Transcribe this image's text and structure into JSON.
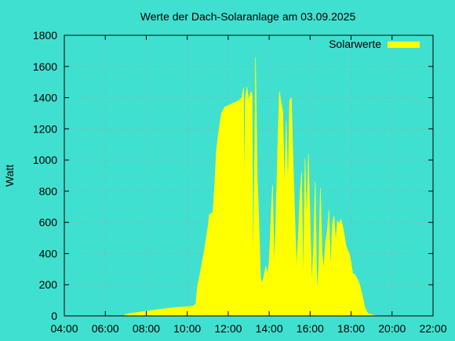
{
  "chart_data": {
    "type": "area",
    "title": "Werte der Dach-Solaranlage am 03.09.2025",
    "xlabel": "",
    "ylabel": "Watt",
    "x_ticks": [
      "04:00",
      "06:00",
      "08:00",
      "10:00",
      "12:00",
      "14:00",
      "16:00",
      "18:00",
      "20:00",
      "22:00"
    ],
    "y_ticks": [
      "0",
      "200",
      "400",
      "600",
      "800",
      "1000",
      "1200",
      "1400",
      "1600",
      "1800"
    ],
    "xlim": [
      "04:00",
      "22:00"
    ],
    "ylim": [
      0,
      1800
    ],
    "grid": true,
    "legend_position": "top-right",
    "colors": {
      "background": "#40e0d0",
      "series": "#ffff00",
      "grid": "#a0a0a0",
      "axis": "#000000"
    },
    "series": [
      {
        "name": "Solarwerte",
        "points": [
          [
            "06:55",
            0
          ],
          [
            "07:00",
            12
          ],
          [
            "07:30",
            22
          ],
          [
            "08:00",
            30
          ],
          [
            "08:30",
            40
          ],
          [
            "09:00",
            48
          ],
          [
            "09:30",
            55
          ],
          [
            "10:00",
            60
          ],
          [
            "10:15",
            62
          ],
          [
            "10:25",
            75
          ],
          [
            "10:30",
            190
          ],
          [
            "10:40",
            300
          ],
          [
            "10:50",
            420
          ],
          [
            "11:00",
            560
          ],
          [
            "11:05",
            650
          ],
          [
            "11:15",
            665
          ],
          [
            "11:20",
            820
          ],
          [
            "11:25",
            1050
          ],
          [
            "11:30",
            1150
          ],
          [
            "11:40",
            1300
          ],
          [
            "11:50",
            1340
          ],
          [
            "12:00",
            1350
          ],
          [
            "12:10",
            1360
          ],
          [
            "12:20",
            1370
          ],
          [
            "12:30",
            1380
          ],
          [
            "12:40",
            1400
          ],
          [
            "12:45",
            1465
          ],
          [
            "12:47",
            700
          ],
          [
            "12:50",
            1390
          ],
          [
            "12:55",
            1470
          ],
          [
            "13:00",
            1380
          ],
          [
            "13:03",
            1410
          ],
          [
            "13:06",
            1440
          ],
          [
            "13:10",
            1420
          ],
          [
            "13:13",
            260
          ],
          [
            "13:18",
            1150
          ],
          [
            "13:20",
            1660
          ],
          [
            "13:25",
            900
          ],
          [
            "13:30",
            600
          ],
          [
            "13:35",
            240
          ],
          [
            "13:40",
            210
          ],
          [
            "13:45",
            260
          ],
          [
            "13:50",
            320
          ],
          [
            "13:55",
            270
          ],
          [
            "14:00",
            350
          ],
          [
            "14:05",
            620
          ],
          [
            "14:10",
            840
          ],
          [
            "14:15",
            300
          ],
          [
            "14:20",
            650
          ],
          [
            "14:25",
            1080
          ],
          [
            "14:30",
            1440
          ],
          [
            "14:35",
            1370
          ],
          [
            "14:40",
            1310
          ],
          [
            "14:45",
            800
          ],
          [
            "14:50",
            1250
          ],
          [
            "14:55",
            820
          ],
          [
            "15:00",
            1380
          ],
          [
            "15:05",
            1400
          ],
          [
            "15:10",
            1000
          ],
          [
            "15:15",
            650
          ],
          [
            "15:20",
            300
          ],
          [
            "15:25",
            500
          ],
          [
            "15:30",
            770
          ],
          [
            "15:35",
            920
          ],
          [
            "15:40",
            180
          ],
          [
            "15:45",
            1010
          ],
          [
            "15:50",
            600
          ],
          [
            "15:55",
            1040
          ],
          [
            "16:00",
            600
          ],
          [
            "16:05",
            200
          ],
          [
            "16:10",
            460
          ],
          [
            "16:15",
            860
          ],
          [
            "16:20",
            150
          ],
          [
            "16:25",
            310
          ],
          [
            "16:30",
            820
          ],
          [
            "16:35",
            400
          ],
          [
            "16:40",
            300
          ],
          [
            "16:45",
            470
          ],
          [
            "16:50",
            540
          ],
          [
            "16:55",
            680
          ],
          [
            "17:00",
            280
          ],
          [
            "17:05",
            590
          ],
          [
            "17:10",
            640
          ],
          [
            "17:15",
            470
          ],
          [
            "17:20",
            610
          ],
          [
            "17:25",
            590
          ],
          [
            "17:30",
            620
          ],
          [
            "17:35",
            580
          ],
          [
            "17:40",
            520
          ],
          [
            "17:45",
            450
          ],
          [
            "17:50",
            420
          ],
          [
            "17:55",
            400
          ],
          [
            "18:00",
            340
          ],
          [
            "18:05",
            270
          ],
          [
            "18:10",
            270
          ],
          [
            "18:15",
            250
          ],
          [
            "18:20",
            230
          ],
          [
            "18:25",
            200
          ],
          [
            "18:30",
            160
          ],
          [
            "18:35",
            110
          ],
          [
            "18:40",
            60
          ],
          [
            "18:45",
            30
          ],
          [
            "18:50",
            15
          ],
          [
            "19:00",
            8
          ],
          [
            "19:10",
            3
          ],
          [
            "19:20",
            0
          ]
        ]
      }
    ]
  }
}
